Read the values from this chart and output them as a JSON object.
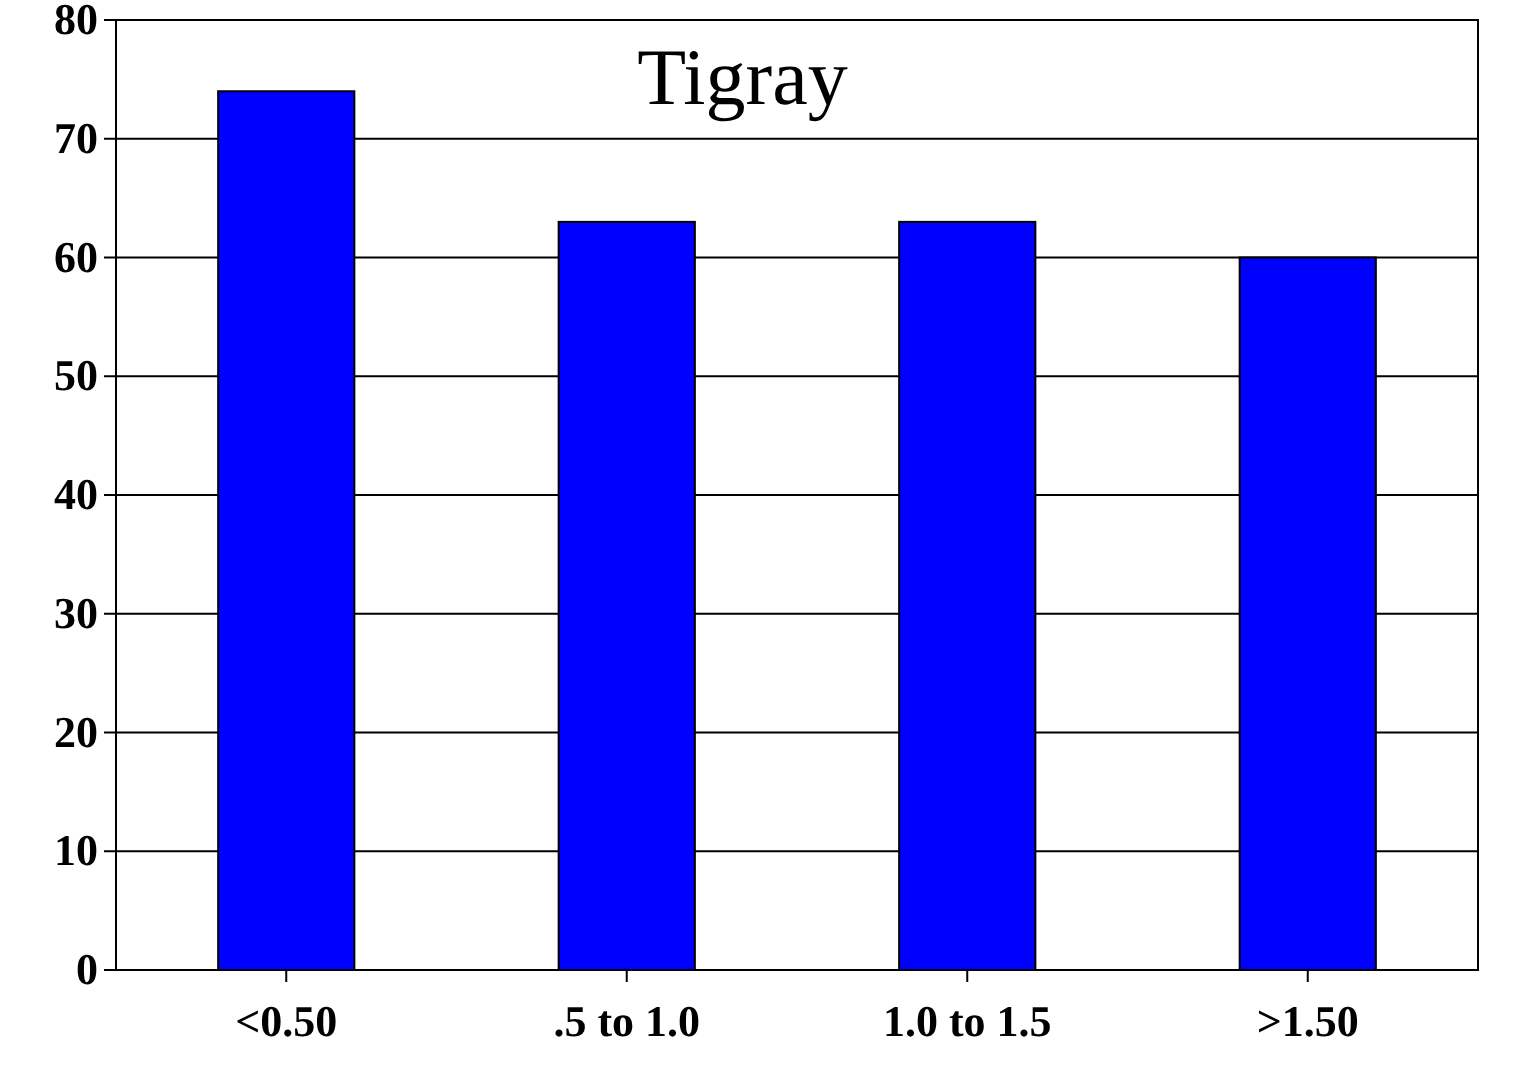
{
  "chart_data": {
    "type": "bar",
    "title": "Tigray",
    "categories": [
      "<0.50",
      ".5 to 1.0",
      "1.0 to 1.5",
      ">1.50"
    ],
    "values": [
      74,
      63,
      63,
      60
    ],
    "color": "#0000ff",
    "ylim": [
      0,
      80
    ],
    "yticks": [
      0,
      10,
      20,
      30,
      40,
      50,
      60,
      70,
      80
    ],
    "grid": "y"
  }
}
